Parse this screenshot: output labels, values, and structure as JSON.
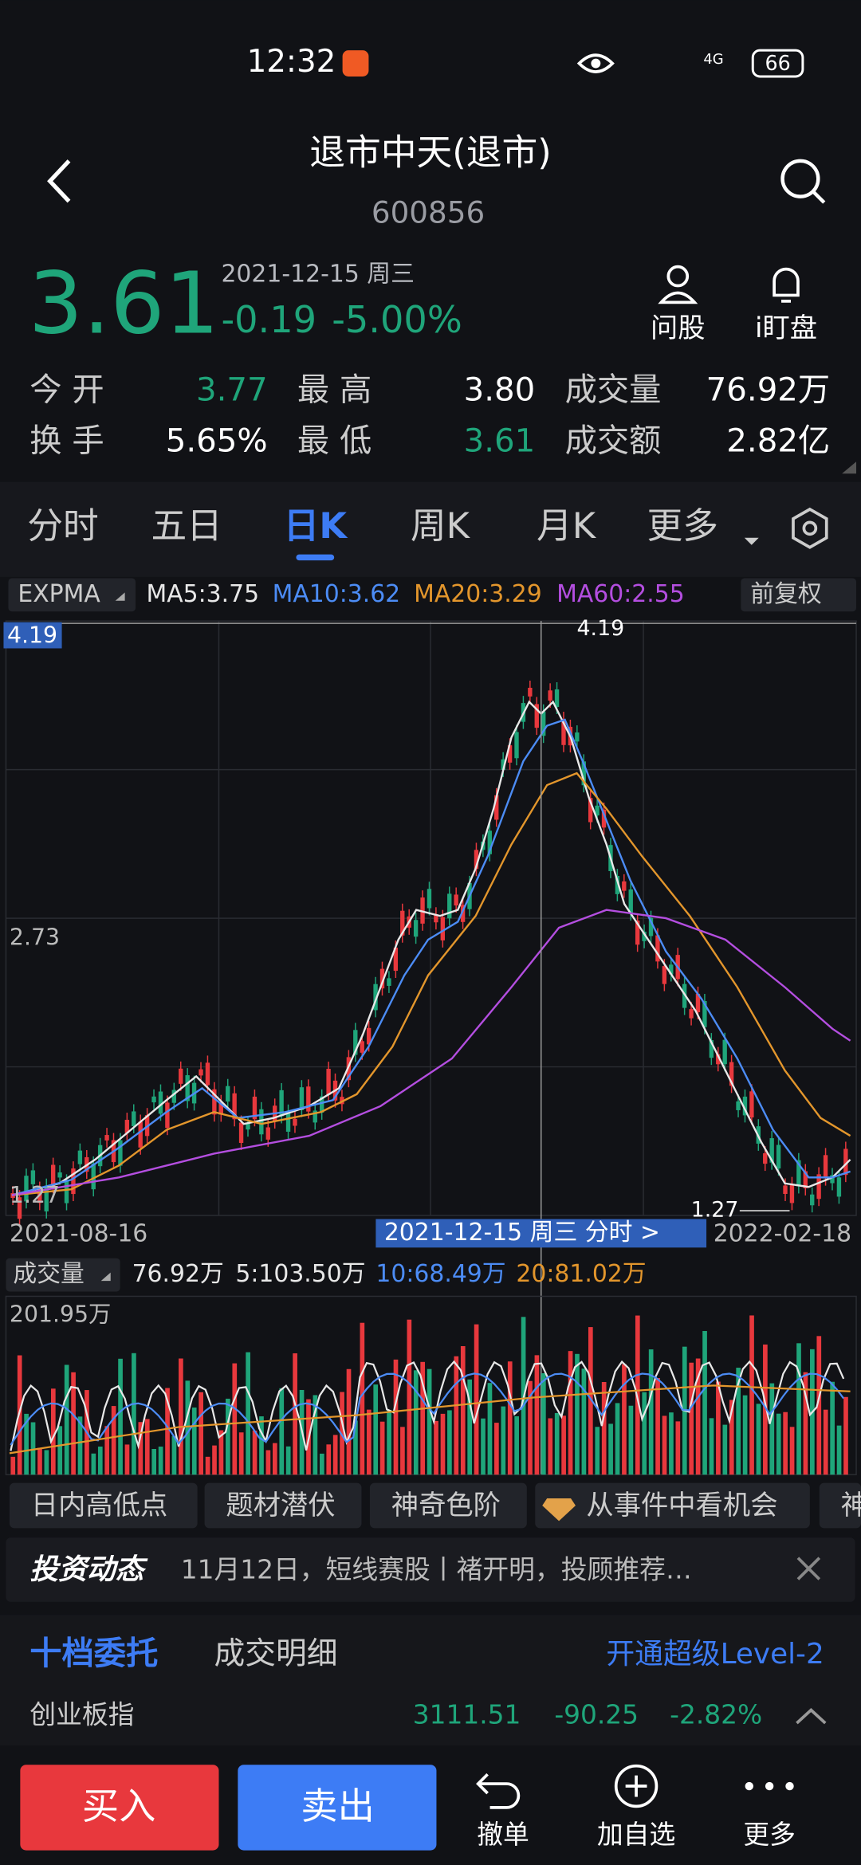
{
  "status": {
    "time": "12:32",
    "network": "4G",
    "battery": "66"
  },
  "header": {
    "title": "退市中天(退市)",
    "code": "600856"
  },
  "quote": {
    "price": "3.61",
    "date": "2021-12-15 周三",
    "change": "-0.19",
    "change_pct": "-5.00%"
  },
  "actions": [
    "问股",
    "i盯盘"
  ],
  "stats": [
    [
      {
        "label": "今 开",
        "value": "3.77"
      },
      {
        "label": "最 高",
        "value": "3.80"
      },
      {
        "label": "成交量",
        "value": "76.92万"
      }
    ],
    [
      {
        "label": "换 手",
        "value": "5.65%"
      },
      {
        "label": "最 低",
        "value": "3.61"
      },
      {
        "label": "成交额",
        "value": "2.82亿"
      }
    ]
  ],
  "tabs": [
    "分时",
    "五日",
    "日K",
    "周K",
    "月K",
    "更多"
  ],
  "indicator": {
    "name": "EXPMA",
    "ma": [
      "MA5:3.75",
      "MA10:3.62",
      "MA20:3.29",
      "MA60:2.55"
    ],
    "adjust": "前复权"
  },
  "kline": {
    "axis_top": "4.19",
    "axis_mid": "2.73",
    "axis_low": "1.27",
    "max_label": "4.19",
    "min_label": "1.27",
    "start_date": "2021-08-16",
    "end_date": "2022-02-18",
    "cursor_label": "2021-12-15 周三 分时 >"
  },
  "volume": {
    "label": "成交量",
    "items": [
      "76.92万",
      "5:103.50万",
      "10:68.49万",
      "20:81.02万"
    ],
    "max": "201.95万"
  },
  "chips": [
    "日内高低点",
    "题材潜伏",
    "神奇色阶",
    "从事件中看机会",
    "神"
  ],
  "news": {
    "label": "投资动态",
    "text": "11月12日，短线赛股丨褚开明，投顾推荐…"
  },
  "orders": {
    "tabs": [
      "十档委托",
      "成交明细"
    ],
    "upgrade": "开通超级Level-2"
  },
  "index": {
    "name": "创业板指",
    "value": "3111.51",
    "change": "-90.25",
    "pct": "-2.82%"
  },
  "bottom": {
    "buy": "买入",
    "sell": "卖出",
    "actions": [
      "撤单",
      "加自选",
      "更多"
    ]
  }
}
